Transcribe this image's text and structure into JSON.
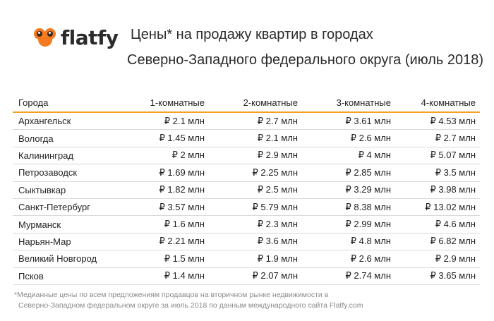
{
  "brand": {
    "name": "flatfy",
    "icon": "flatfy-owl-logo-icon",
    "accent": "#f47920"
  },
  "title": {
    "line1": "Цены* на продажу квартир в городах",
    "line2": "Северно-Западного федерального округа (июль 2018)"
  },
  "table": {
    "headers": [
      "Города",
      "1-комнатные",
      "2-комнатные",
      "3-комнатные",
      "4-комнатные"
    ],
    "rows": [
      [
        "Архангельск",
        "₽ 2.1 млн",
        "₽ 2.7 млн",
        "₽ 3.61 млн",
        "₽ 4.53 млн"
      ],
      [
        "Вологда",
        "₽ 1.45 млн",
        "₽ 2.1 млн",
        "₽ 2.6 млн",
        "₽ 2.7 млн"
      ],
      [
        "Калининград",
        "₽ 2 млн",
        "₽ 2.9 млн",
        "₽ 4 млн",
        "₽ 5.07 млн"
      ],
      [
        "Петрозаводск",
        "₽ 1.69 млн",
        "₽ 2.25 млн",
        "₽ 2.85 млн",
        "₽ 3.5 млн"
      ],
      [
        "Сыктывкар",
        "₽ 1.82 млн",
        "₽ 2.5 млн",
        "₽ 3.29 млн",
        "₽ 3.98 млн"
      ],
      [
        "Санкт-Петербург",
        "₽ 3.57 млн",
        "₽ 5.79 млн",
        "₽ 8.38 млн",
        "₽ 13.02 млн"
      ],
      [
        "Мурманск",
        "₽ 1.6 млн",
        "₽ 2.3 млн",
        "₽ 2.99 млн",
        "₽ 4.6 млн"
      ],
      [
        "Нарьян-Мар",
        "₽ 2.21 млн",
        "₽ 3.6 млн",
        "₽ 4.8 млн",
        "₽ 6.82 млн"
      ],
      [
        "Великий Новгород",
        "₽ 1.5 млн",
        "₽ 1.9 млн",
        "₽ 2.6 млн",
        "₽ 2.9 млн"
      ],
      [
        "Псков",
        "₽ 1.4 млн",
        "₽ 2.07 млн",
        "₽ 2.74 млн",
        "₽ 3.65 млн"
      ]
    ]
  },
  "footnote": {
    "line1": "*Медианные цены по всем предложениям продавцов на вторичном рынке недвижимости в",
    "line2": "Северно-Западном федеральном округе за июль 2018 по данным международного сайта Flatfy.com"
  }
}
